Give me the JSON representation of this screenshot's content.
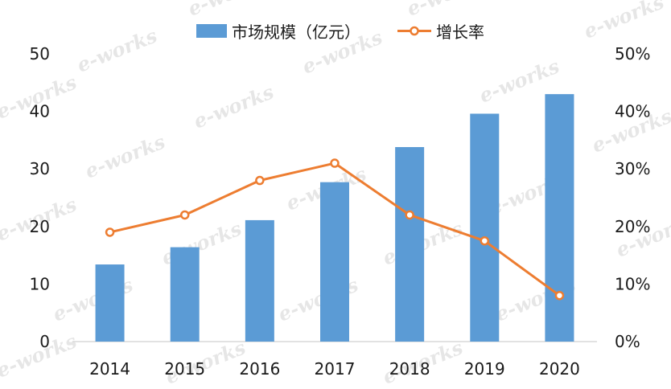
{
  "watermark": "e-works",
  "chart_data": {
    "type": "bar",
    "categories": [
      "2014",
      "2015",
      "2016",
      "2017",
      "2018",
      "2019",
      "2020"
    ],
    "series": [
      {
        "name": "市场规模（亿元）",
        "type": "bar",
        "axis": "left",
        "color": "#5B9BD5",
        "values": [
          13.4,
          16.4,
          21.1,
          27.7,
          33.8,
          39.6,
          43.0
        ]
      },
      {
        "name": "增长率",
        "type": "line",
        "axis": "right",
        "color": "#ED7D31",
        "values": [
          0.19,
          0.22,
          0.28,
          0.31,
          0.22,
          0.175,
          0.08
        ]
      }
    ],
    "y_left": {
      "ylim": [
        0,
        50
      ],
      "ticks": [
        "0",
        "10",
        "20",
        "30",
        "40",
        "50"
      ]
    },
    "y_right": {
      "ylim": [
        0,
        0.5
      ],
      "ticks": [
        "0%",
        "10%",
        "20%",
        "30%",
        "40%",
        "50%"
      ]
    },
    "legend": "top-center",
    "grid": false
  }
}
